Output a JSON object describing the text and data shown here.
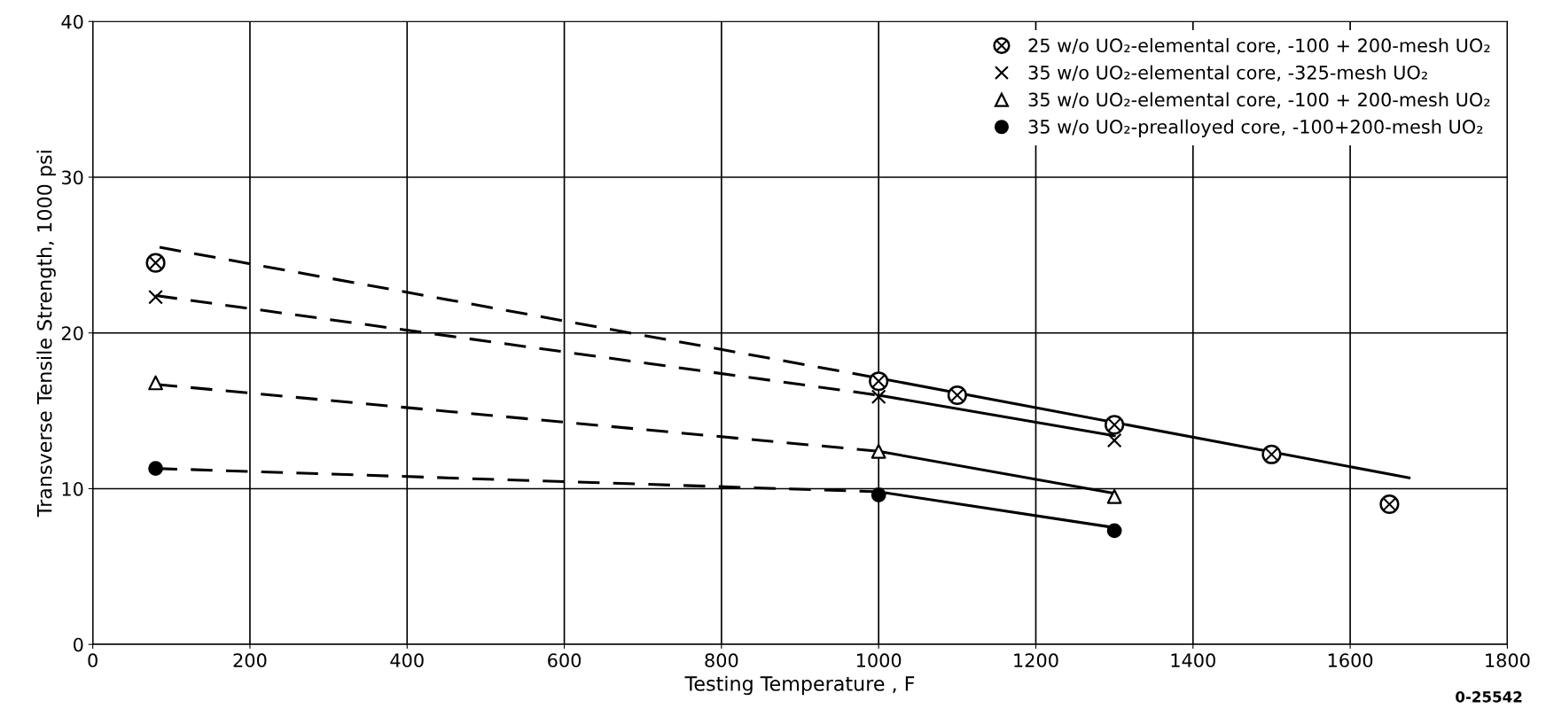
{
  "chart_data": {
    "type": "scatter",
    "xlabel": "Testing Temperature , F",
    "ylabel": "Transverse Tensile Strength, 1000 psi",
    "xlim": [
      0,
      1800
    ],
    "ylim": [
      0,
      40
    ],
    "xticks": [
      0,
      200,
      400,
      600,
      800,
      1000,
      1200,
      1400,
      1600,
      1800
    ],
    "yticks": [
      0,
      10,
      20,
      30,
      40
    ],
    "grid": true,
    "legend": "top right",
    "annotations": [
      "0-25542"
    ],
    "series": [
      {
        "name": "25 w/o UO₂-elemental core, -100 + 200-mesh UO₂",
        "color": "#000000",
        "marker": "circled_cross",
        "x": [
          80,
          1000,
          1100,
          1300,
          1500,
          1650
        ],
        "values": [
          24.5,
          16.9,
          16.0,
          14.1,
          12.2,
          9.0
        ]
      },
      {
        "name": "35 w/o UO₂-elemental core, -325-mesh UO₂",
        "color": "#000000",
        "marker": "cross",
        "x": [
          80,
          1000,
          1300
        ],
        "values": [
          22.3,
          15.9,
          13.1
        ]
      },
      {
        "name": "35 w/o UO₂-elemental core, -100 + 200-mesh UO₂",
        "color": "#000000",
        "marker": "triangle",
        "x": [
          80,
          1000,
          1300
        ],
        "values": [
          16.8,
          12.4,
          9.5
        ]
      },
      {
        "name": "35 w/o UO₂-prealloyed core, -100+200-mesh UO₂",
        "color": "#000000",
        "marker": "circle",
        "x": [
          80,
          1000,
          1300
        ],
        "values": [
          11.3,
          9.6,
          7.3
        ]
      },
      {
        "type": "line",
        "color": "#000000",
        "line_style": "dashed",
        "x": [
          85,
          1000
        ],
        "values": [
          25.5,
          17.1
        ]
      },
      {
        "type": "line",
        "color": "#000000",
        "line_style": "solid",
        "x": [
          1000,
          1675
        ],
        "values": [
          17.1,
          10.7
        ]
      },
      {
        "type": "line",
        "color": "#000000",
        "line_style": "dashed",
        "x": [
          80,
          1000
        ],
        "values": [
          22.4,
          16.0
        ]
      },
      {
        "type": "line",
        "color": "#000000",
        "line_style": "solid",
        "x": [
          1000,
          1300
        ],
        "values": [
          16.0,
          13.4
        ]
      },
      {
        "type": "line",
        "color": "#000000",
        "line_style": "dashed",
        "x": [
          80,
          1000
        ],
        "values": [
          16.7,
          12.4
        ]
      },
      {
        "type": "line",
        "color": "#000000",
        "line_style": "solid",
        "x": [
          1000,
          1300
        ],
        "values": [
          12.4,
          9.7
        ]
      },
      {
        "type": "line",
        "color": "#000000",
        "line_style": "dashed",
        "x": [
          80,
          1000
        ],
        "values": [
          11.3,
          9.8
        ]
      },
      {
        "type": "line",
        "color": "#000000",
        "line_style": "solid",
        "x": [
          1000,
          1300
        ],
        "values": [
          9.8,
          7.5
        ]
      }
    ]
  }
}
